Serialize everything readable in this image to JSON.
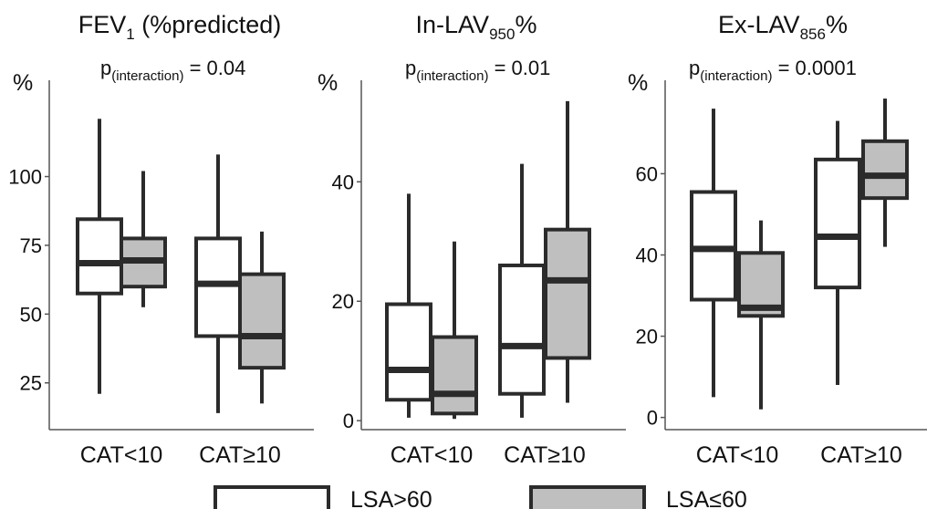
{
  "legend": [
    {
      "label": "LSA>60",
      "color": "#ffffff"
    },
    {
      "label": "LSA≤60",
      "color": "#bfbfbf"
    }
  ],
  "chart_data": [
    {
      "type": "boxplot",
      "title_main": "FEV",
      "title_sub": "1",
      "title_post": " (%predicted)",
      "p_label": "p",
      "p_sub": "(interaction)",
      "p_value": " =  0.04",
      "ylabel": "%",
      "ylim": [
        8,
        135
      ],
      "yticks": [
        25,
        50,
        75,
        100
      ],
      "categories": [
        "CAT<10",
        "CAT≥10"
      ],
      "series": [
        {
          "name": "LSA>60",
          "boxes": [
            {
              "min": 21,
              "q1": 57.5,
              "median": 68.5,
              "q3": 84.5,
              "max": 121
            },
            {
              "min": 14,
              "q1": 42,
              "median": 61,
              "q3": 77.5,
              "max": 108
            }
          ]
        },
        {
          "name": "LSA≤60",
          "boxes": [
            {
              "min": 52.5,
              "q1": 60,
              "median": 69.5,
              "q3": 77.5,
              "max": 102
            },
            {
              "min": 17.5,
              "q1": 30.5,
              "median": 42,
              "q3": 64.5,
              "max": 80
            }
          ]
        }
      ]
    },
    {
      "type": "boxplot",
      "title_main": "In-LAV",
      "title_sub": "950",
      "title_post": "%",
      "p_label": "p",
      "p_sub": "(interaction)",
      "p_value": " =  0.01",
      "ylabel": "%",
      "ylim": [
        -1.5,
        57
      ],
      "yticks": [
        0,
        20,
        40
      ],
      "categories": [
        "CAT<10",
        "CAT≥10"
      ],
      "series": [
        {
          "name": "LSA>60",
          "boxes": [
            {
              "min": 0.5,
              "q1": 3.5,
              "median": 8.5,
              "q3": 19.5,
              "max": 38
            },
            {
              "min": 0.5,
              "q1": 4.5,
              "median": 12.5,
              "q3": 26,
              "max": 43
            }
          ]
        },
        {
          "name": "LSA≤60",
          "boxes": [
            {
              "min": 0.3,
              "q1": 1.2,
              "median": 4.5,
              "q3": 14,
              "max": 30
            },
            {
              "min": 3,
              "q1": 10.5,
              "median": 23.5,
              "q3": 32,
              "max": 53.5
            }
          ]
        }
      ]
    },
    {
      "type": "boxplot",
      "title_main": "Ex-LAV",
      "title_sub": "856",
      "title_post": "%",
      "p_label": "p",
      "p_sub": "(interaction)",
      "p_value": " = 0.0001",
      "ylabel": "%",
      "ylim": [
        -3,
        83
      ],
      "yticks": [
        0,
        20,
        40,
        60
      ],
      "categories": [
        "CAT<10",
        "CAT≥10"
      ],
      "series": [
        {
          "name": "LSA>60",
          "boxes": [
            {
              "min": 5,
              "q1": 29,
              "median": 41.5,
              "q3": 55.5,
              "max": 76
            },
            {
              "min": 8,
              "q1": 32,
              "median": 44.5,
              "q3": 63.5,
              "max": 73
            }
          ]
        },
        {
          "name": "LSA≤60",
          "boxes": [
            {
              "min": 2,
              "q1": 25,
              "median": 27,
              "q3": 40.5,
              "max": 48.5
            },
            {
              "min": 42,
              "q1": 54,
              "median": 59.5,
              "q3": 68,
              "max": 78.5
            }
          ]
        }
      ]
    }
  ]
}
